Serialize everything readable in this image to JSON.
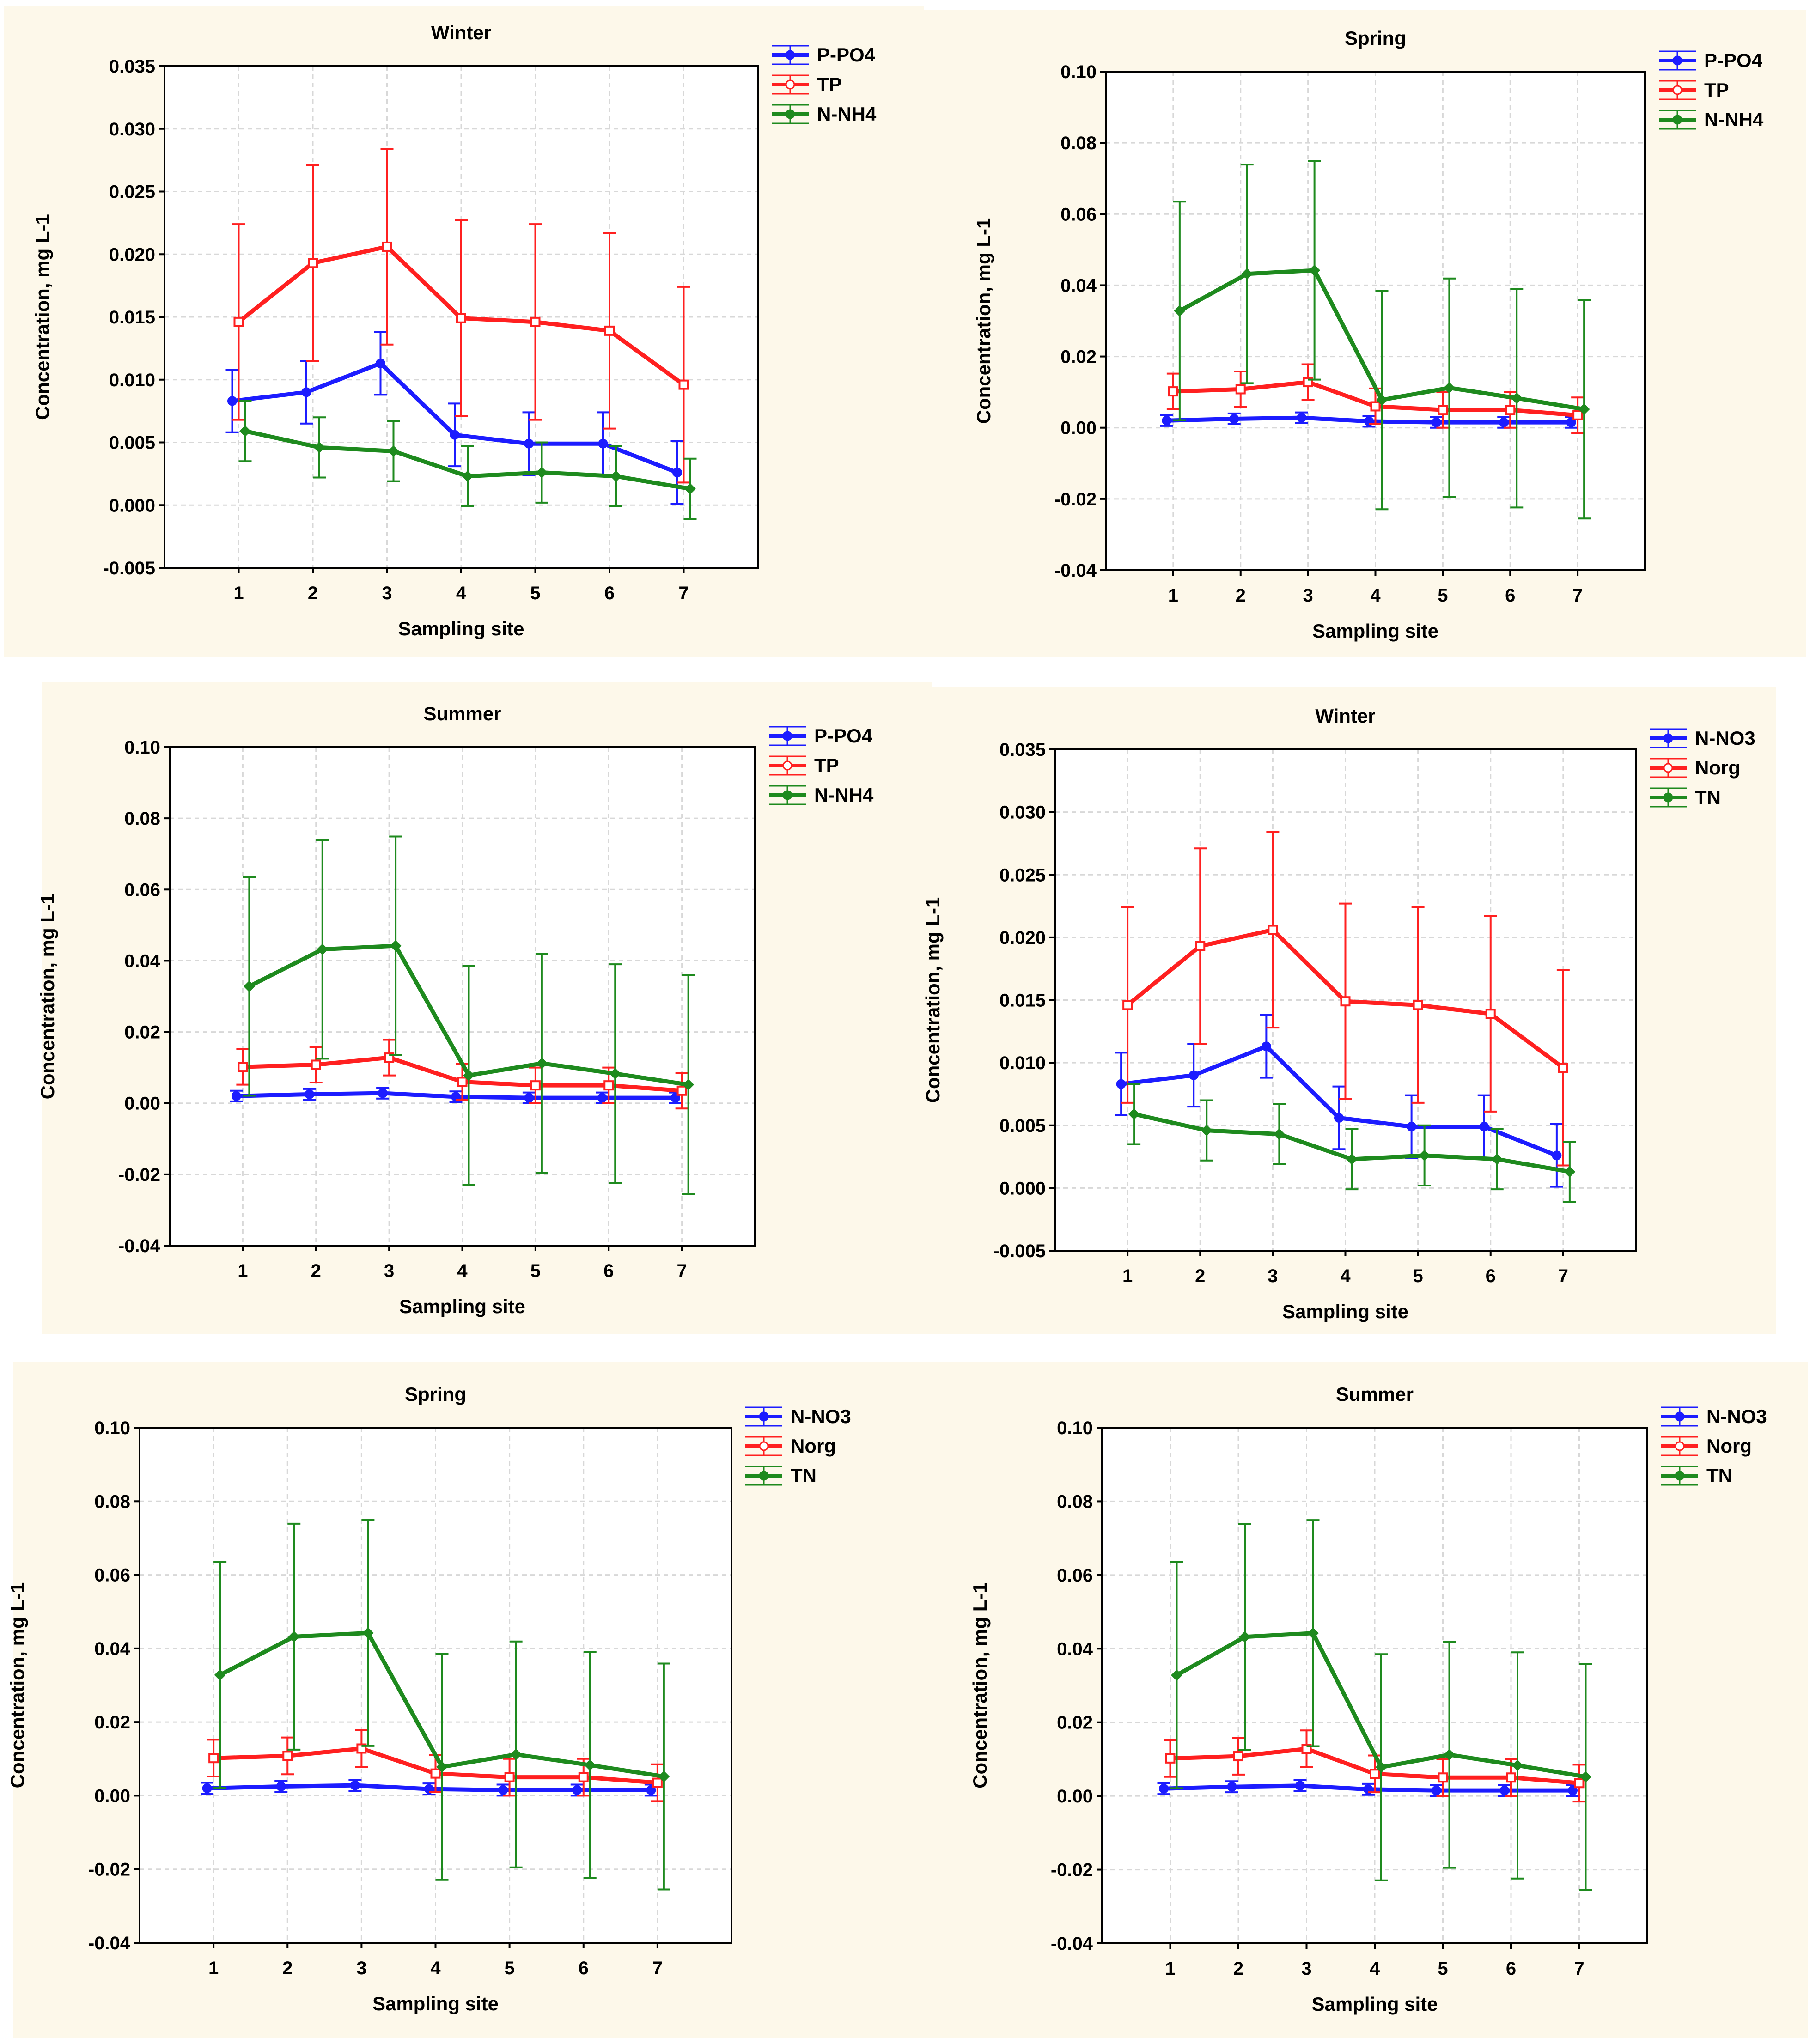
{
  "chart_data": [
    {
      "title": "Winter",
      "type": "line",
      "categories": [
        "1",
        "2",
        "3",
        "4",
        "5",
        "6",
        "7"
      ],
      "xlabel": "Sampling site",
      "ylabel": "Concentration, mg L-1",
      "ylim": [
        -0.005,
        0.035
      ],
      "yticks": [
        "0.035",
        "0.030",
        "0.025",
        "0.020",
        "0.015",
        "0.010",
        "0.005",
        "0.000",
        "-0.005"
      ],
      "ytick_values": [
        0.035,
        0.03,
        0.025,
        0.02,
        0.015,
        0.01,
        0.005,
        0.0,
        -0.005
      ],
      "series": [
        {
          "name": "P-PO4",
          "color": "#1c1cff",
          "values": [
            0.0083,
            0.009,
            0.0113,
            0.0056,
            0.0049,
            0.0049,
            0.0026
          ],
          "errors": [
            0.0025,
            0.0025,
            0.0025,
            0.0025,
            0.0025,
            0.0025,
            0.0025
          ]
        },
        {
          "name": "TP",
          "color": "#ff2020",
          "values": [
            0.0146,
            0.0193,
            0.0206,
            0.0149,
            0.0146,
            0.0139,
            0.0096
          ],
          "errors": [
            0.0078,
            0.0078,
            0.0078,
            0.0078,
            0.0078,
            0.0078,
            0.0078
          ]
        },
        {
          "name": "N-NH4",
          "color": "#1e8a1e",
          "values": [
            0.0059,
            0.0046,
            0.0043,
            0.0023,
            0.0026,
            0.0023,
            0.0013
          ],
          "errors": [
            0.0024,
            0.0024,
            0.0024,
            0.0024,
            0.0024,
            0.0024,
            0.0024
          ]
        }
      ]
    },
    {
      "title": "Spring",
      "type": "line",
      "categories": [
        "1",
        "2",
        "3",
        "4",
        "5",
        "6",
        "7"
      ],
      "xlabel": "Sampling site",
      "ylabel": "Concentration, mg L-1",
      "ylim": [
        -0.04,
        0.1
      ],
      "yticks": [
        "0.10",
        "0.08",
        "0.06",
        "0.04",
        "0.02",
        "0.00",
        "-0.02",
        "-0.04"
      ],
      "ytick_values": [
        0.1,
        0.08,
        0.06,
        0.04,
        0.02,
        0.0,
        -0.02,
        -0.04
      ],
      "series": [
        {
          "name": "P-PO4",
          "color": "#1c1cff",
          "values": [
            0.002,
            0.0025,
            0.0028,
            0.0018,
            0.0015,
            0.0015,
            0.0015
          ],
          "errors": [
            0.0015,
            0.0015,
            0.0015,
            0.0015,
            0.0015,
            0.0015,
            0.0015
          ]
        },
        {
          "name": "TP",
          "color": "#ff2020",
          "values": [
            0.0102,
            0.0108,
            0.0128,
            0.006,
            0.005,
            0.005,
            0.0035
          ],
          "errors": [
            0.005,
            0.005,
            0.005,
            0.005,
            0.005,
            0.005,
            0.005
          ]
        },
        {
          "name": "N-NH4",
          "color": "#1e8a1e",
          "values": [
            0.0328,
            0.0432,
            0.0442,
            0.0078,
            0.0112,
            0.0083,
            0.0052
          ],
          "errors": [
            0.0307,
            0.0307,
            0.0307,
            0.0307,
            0.0307,
            0.0307,
            0.0307
          ]
        }
      ]
    },
    {
      "title": "Summer",
      "type": "line",
      "categories": [
        "1",
        "2",
        "3",
        "4",
        "5",
        "6",
        "7"
      ],
      "xlabel": "Sampling site",
      "ylabel": "Concentration, mg L-1",
      "ylim": [
        -0.04,
        0.1
      ],
      "yticks": [
        "0.10",
        "0.08",
        "0.06",
        "0.04",
        "0.02",
        "0.00",
        "-0.02",
        "-0.04"
      ],
      "ytick_values": [
        0.1,
        0.08,
        0.06,
        0.04,
        0.02,
        0.0,
        -0.02,
        -0.04
      ],
      "series": [
        {
          "name": "P-PO4",
          "color": "#1c1cff",
          "values": [
            0.002,
            0.0025,
            0.0028,
            0.0018,
            0.0015,
            0.0015,
            0.0015
          ],
          "errors": [
            0.0015,
            0.0015,
            0.0015,
            0.0015,
            0.0015,
            0.0015,
            0.0015
          ]
        },
        {
          "name": "TP",
          "color": "#ff2020",
          "values": [
            0.0102,
            0.0108,
            0.0128,
            0.006,
            0.005,
            0.005,
            0.0035
          ],
          "errors": [
            0.005,
            0.005,
            0.005,
            0.005,
            0.005,
            0.005,
            0.005
          ]
        },
        {
          "name": "N-NH4",
          "color": "#1e8a1e",
          "values": [
            0.0328,
            0.0432,
            0.0442,
            0.0078,
            0.0112,
            0.0083,
            0.0052
          ],
          "errors": [
            0.0307,
            0.0307,
            0.0307,
            0.0307,
            0.0307,
            0.0307,
            0.0307
          ]
        }
      ]
    },
    {
      "title": "Winter",
      "type": "line",
      "categories": [
        "1",
        "2",
        "3",
        "4",
        "5",
        "6",
        "7"
      ],
      "xlabel": "Sampling site",
      "ylabel": "Concentration, mg L-1",
      "ylim": [
        -0.005,
        0.035
      ],
      "yticks": [
        "0.035",
        "0.030",
        "0.025",
        "0.020",
        "0.015",
        "0.010",
        "0.005",
        "0.000",
        "-0.005"
      ],
      "ytick_values": [
        0.035,
        0.03,
        0.025,
        0.02,
        0.015,
        0.01,
        0.005,
        0.0,
        -0.005
      ],
      "series": [
        {
          "name": "N-NO3",
          "color": "#1c1cff",
          "values": [
            0.0083,
            0.009,
            0.0113,
            0.0056,
            0.0049,
            0.0049,
            0.0026
          ],
          "errors": [
            0.0025,
            0.0025,
            0.0025,
            0.0025,
            0.0025,
            0.0025,
            0.0025
          ]
        },
        {
          "name": "Norg",
          "color": "#ff2020",
          "values": [
            0.0146,
            0.0193,
            0.0206,
            0.0149,
            0.0146,
            0.0139,
            0.0096
          ],
          "errors": [
            0.0078,
            0.0078,
            0.0078,
            0.0078,
            0.0078,
            0.0078,
            0.0078
          ]
        },
        {
          "name": "TN",
          "color": "#1e8a1e",
          "values": [
            0.0059,
            0.0046,
            0.0043,
            0.0023,
            0.0026,
            0.0023,
            0.0013
          ],
          "errors": [
            0.0024,
            0.0024,
            0.0024,
            0.0024,
            0.0024,
            0.0024,
            0.0024
          ]
        }
      ]
    },
    {
      "title": "Spring",
      "type": "line",
      "categories": [
        "1",
        "2",
        "3",
        "4",
        "5",
        "6",
        "7"
      ],
      "xlabel": "Sampling site",
      "ylabel": "Concentration, mg L-1",
      "ylim": [
        -0.04,
        0.1
      ],
      "yticks": [
        "0.10",
        "0.08",
        "0.06",
        "0.04",
        "0.02",
        "0.00",
        "-0.02",
        "-0.04"
      ],
      "ytick_values": [
        0.1,
        0.08,
        0.06,
        0.04,
        0.02,
        0.0,
        -0.02,
        -0.04
      ],
      "series": [
        {
          "name": "N-NO3",
          "color": "#1c1cff",
          "values": [
            0.002,
            0.0025,
            0.0028,
            0.0018,
            0.0015,
            0.0015,
            0.0015
          ],
          "errors": [
            0.0015,
            0.0015,
            0.0015,
            0.0015,
            0.0015,
            0.0015,
            0.0015
          ]
        },
        {
          "name": "Norg",
          "color": "#ff2020",
          "values": [
            0.0102,
            0.0108,
            0.0128,
            0.006,
            0.005,
            0.005,
            0.0035
          ],
          "errors": [
            0.005,
            0.005,
            0.005,
            0.005,
            0.005,
            0.005,
            0.005
          ]
        },
        {
          "name": "TN",
          "color": "#1e8a1e",
          "values": [
            0.0328,
            0.0432,
            0.0442,
            0.0078,
            0.0112,
            0.0083,
            0.0052
          ],
          "errors": [
            0.0307,
            0.0307,
            0.0307,
            0.0307,
            0.0307,
            0.0307,
            0.0307
          ]
        }
      ]
    },
    {
      "title": "Summer",
      "type": "line",
      "categories": [
        "1",
        "2",
        "3",
        "4",
        "5",
        "6",
        "7"
      ],
      "xlabel": "Sampling site",
      "ylabel": "Concentration, mg L-1",
      "ylim": [
        -0.04,
        0.1
      ],
      "yticks": [
        "0.10",
        "0.08",
        "0.06",
        "0.04",
        "0.02",
        "0.00",
        "-0.02",
        "-0.04"
      ],
      "ytick_values": [
        0.1,
        0.08,
        0.06,
        0.04,
        0.02,
        0.0,
        -0.02,
        -0.04
      ],
      "series": [
        {
          "name": "N-NO3",
          "color": "#1c1cff",
          "values": [
            0.002,
            0.0025,
            0.0028,
            0.0018,
            0.0015,
            0.0015,
            0.0015
          ],
          "errors": [
            0.0015,
            0.0015,
            0.0015,
            0.0015,
            0.0015,
            0.0015,
            0.0015
          ]
        },
        {
          "name": "Norg",
          "color": "#ff2020",
          "values": [
            0.0102,
            0.0108,
            0.0128,
            0.006,
            0.005,
            0.005,
            0.0035
          ],
          "errors": [
            0.005,
            0.005,
            0.005,
            0.005,
            0.005,
            0.005,
            0.005
          ]
        },
        {
          "name": "TN",
          "color": "#1e8a1e",
          "values": [
            0.0328,
            0.0432,
            0.0442,
            0.0078,
            0.0112,
            0.0083,
            0.0052
          ],
          "errors": [
            0.0307,
            0.0307,
            0.0307,
            0.0307,
            0.0307,
            0.0307,
            0.0307
          ]
        }
      ]
    }
  ],
  "colors": {
    "panel_background": "#fdf8ea",
    "plot_background": "#ffffff",
    "grid": "#d8d8d8",
    "axis": "#000000"
  }
}
